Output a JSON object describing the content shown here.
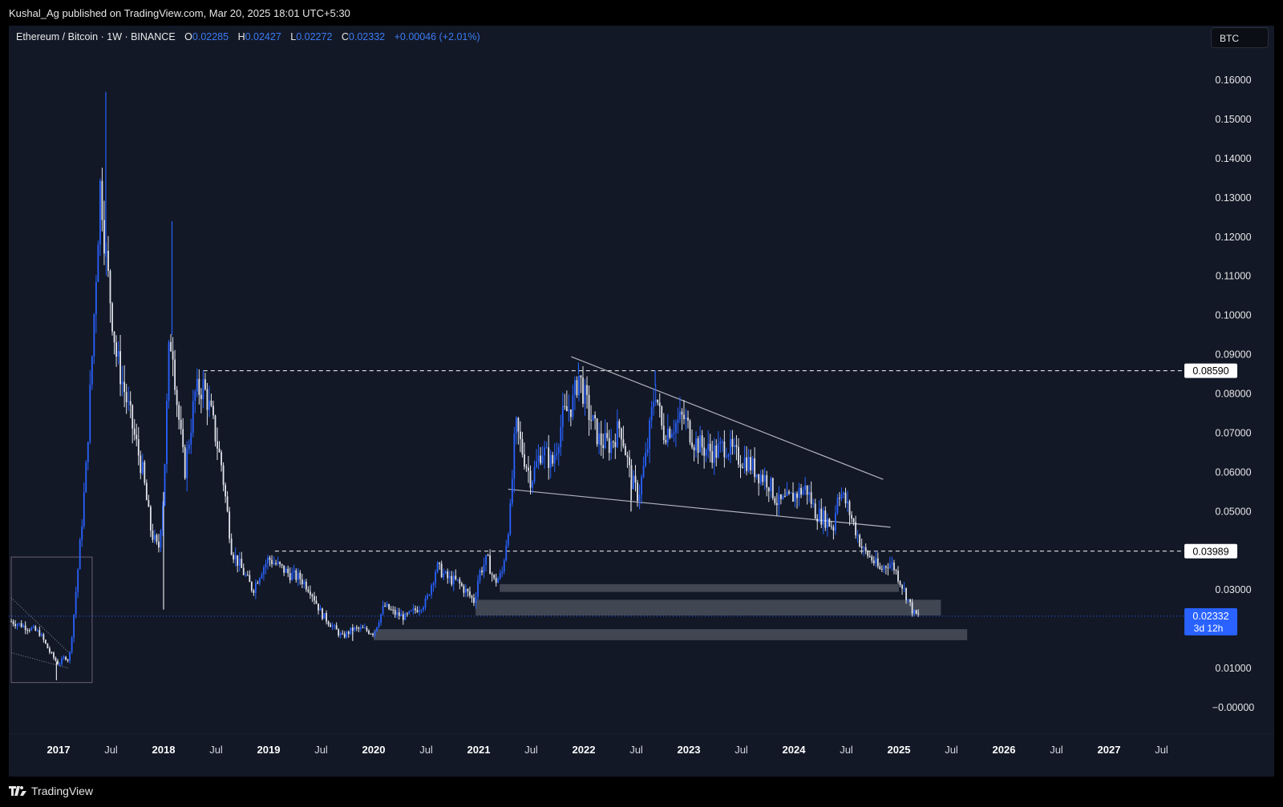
{
  "header": {
    "publisher_text": "Kushal_Ag published on TradingView.com, Mar 20, 2025 18:01 UTC+5:30"
  },
  "legend": {
    "symbol": "Ethereum / Bitcoin · 1W · BINANCE",
    "open_label": "O",
    "open": "0.02285",
    "high_label": "H",
    "high": "0.02427",
    "low_label": "L",
    "low": "0.02272",
    "close_label": "C",
    "close": "0.02332",
    "change": "+0.00046 (+2.01%)"
  },
  "currency_button": "BTC",
  "footer": {
    "brand": "TradingView"
  },
  "colors": {
    "background": "#121826",
    "up": "#2962ff",
    "down": "#e0e3eb",
    "zone": "#4a4f5c",
    "accent": "#2962ff"
  },
  "chart_data": {
    "type": "candlestick",
    "ylim": [
      -0.005,
      0.17
    ],
    "y_ticks": [
      "0.16000",
      "0.15000",
      "0.14000",
      "0.13000",
      "0.12000",
      "0.11000",
      "0.10000",
      "0.09000",
      "0.08000",
      "0.07000",
      "0.06000",
      "0.05000",
      "0.03000",
      "0.01000",
      "−0.00000"
    ],
    "y_tick_values": [
      0.16,
      0.15,
      0.14,
      0.13,
      0.12,
      0.11,
      0.1,
      0.09,
      0.08,
      0.07,
      0.06,
      0.05,
      0.03,
      0.01,
      0.0
    ],
    "x_ticks": [
      {
        "label": "2017",
        "t": 2017.0,
        "bold": true
      },
      {
        "label": "Jul",
        "t": 2017.5,
        "bold": false
      },
      {
        "label": "2018",
        "t": 2018.0,
        "bold": true
      },
      {
        "label": "Jul",
        "t": 2018.5,
        "bold": false
      },
      {
        "label": "2019",
        "t": 2019.0,
        "bold": true
      },
      {
        "label": "Jul",
        "t": 2019.5,
        "bold": false
      },
      {
        "label": "2020",
        "t": 2020.0,
        "bold": true
      },
      {
        "label": "Jul",
        "t": 2020.5,
        "bold": false
      },
      {
        "label": "2021",
        "t": 2021.0,
        "bold": true
      },
      {
        "label": "Jul",
        "t": 2021.5,
        "bold": false
      },
      {
        "label": "2022",
        "t": 2022.0,
        "bold": true
      },
      {
        "label": "Jul",
        "t": 2022.5,
        "bold": false
      },
      {
        "label": "2023",
        "t": 2023.0,
        "bold": true
      },
      {
        "label": "Jul",
        "t": 2023.5,
        "bold": false
      },
      {
        "label": "2024",
        "t": 2024.0,
        "bold": true
      },
      {
        "label": "Jul",
        "t": 2024.5,
        "bold": false
      },
      {
        "label": "2025",
        "t": 2025.0,
        "bold": true
      },
      {
        "label": "Jul",
        "t": 2025.5,
        "bold": false
      },
      {
        "label": "2026",
        "t": 2026.0,
        "bold": true
      },
      {
        "label": "Jul",
        "t": 2026.5,
        "bold": false
      },
      {
        "label": "2027",
        "t": 2027.0,
        "bold": true
      },
      {
        "label": "Jul",
        "t": 2027.5,
        "bold": false
      }
    ],
    "price_path": [
      [
        2016.55,
        0.022
      ],
      [
        2016.65,
        0.021
      ],
      [
        2016.75,
        0.02
      ],
      [
        2016.82,
        0.019
      ],
      [
        2016.92,
        0.014
      ],
      [
        2017.0,
        0.011
      ],
      [
        2017.06,
        0.013
      ],
      [
        2017.1,
        0.012
      ],
      [
        2017.14,
        0.022
      ],
      [
        2017.2,
        0.04
      ],
      [
        2017.26,
        0.06
      ],
      [
        2017.32,
        0.09
      ],
      [
        2017.4,
        0.135
      ],
      [
        2017.45,
        0.115
      ],
      [
        2017.55,
        0.09
      ],
      [
        2017.7,
        0.072
      ],
      [
        2017.8,
        0.06
      ],
      [
        2017.88,
        0.045
      ],
      [
        2017.95,
        0.04
      ],
      [
        2018.0,
        0.055
      ],
      [
        2018.05,
        0.09
      ],
      [
        2018.08,
        0.095
      ],
      [
        2018.12,
        0.08
      ],
      [
        2018.2,
        0.06
      ],
      [
        2018.3,
        0.08
      ],
      [
        2018.38,
        0.082
      ],
      [
        2018.45,
        0.075
      ],
      [
        2018.55,
        0.062
      ],
      [
        2018.65,
        0.04
      ],
      [
        2018.75,
        0.035
      ],
      [
        2018.85,
        0.03
      ],
      [
        2018.93,
        0.035
      ],
      [
        2019.0,
        0.038
      ],
      [
        2019.1,
        0.036
      ],
      [
        2019.2,
        0.034
      ],
      [
        2019.3,
        0.033
      ],
      [
        2019.4,
        0.03
      ],
      [
        2019.5,
        0.024
      ],
      [
        2019.6,
        0.021
      ],
      [
        2019.7,
        0.018
      ],
      [
        2019.8,
        0.02
      ],
      [
        2019.9,
        0.02
      ],
      [
        2020.0,
        0.019
      ],
      [
        2020.1,
        0.026
      ],
      [
        2020.2,
        0.024
      ],
      [
        2020.3,
        0.023
      ],
      [
        2020.4,
        0.025
      ],
      [
        2020.5,
        0.027
      ],
      [
        2020.6,
        0.036
      ],
      [
        2020.7,
        0.033
      ],
      [
        2020.8,
        0.032
      ],
      [
        2020.9,
        0.029
      ],
      [
        2020.96,
        0.027
      ],
      [
        2021.0,
        0.034
      ],
      [
        2021.08,
        0.038
      ],
      [
        2021.15,
        0.032
      ],
      [
        2021.22,
        0.034
      ],
      [
        2021.3,
        0.05
      ],
      [
        2021.35,
        0.072
      ],
      [
        2021.42,
        0.065
      ],
      [
        2021.5,
        0.058
      ],
      [
        2021.6,
        0.066
      ],
      [
        2021.7,
        0.062
      ],
      [
        2021.8,
        0.074
      ],
      [
        2021.9,
        0.078
      ],
      [
        2021.95,
        0.085
      ],
      [
        2022.05,
        0.075
      ],
      [
        2022.15,
        0.068
      ],
      [
        2022.25,
        0.067
      ],
      [
        2022.35,
        0.072
      ],
      [
        2022.45,
        0.058
      ],
      [
        2022.52,
        0.054
      ],
      [
        2022.6,
        0.065
      ],
      [
        2022.68,
        0.082
      ],
      [
        2022.75,
        0.07
      ],
      [
        2022.85,
        0.072
      ],
      [
        2022.95,
        0.074
      ],
      [
        2023.05,
        0.068
      ],
      [
        2023.15,
        0.066
      ],
      [
        2023.25,
        0.065
      ],
      [
        2023.35,
        0.067
      ],
      [
        2023.45,
        0.064
      ],
      [
        2023.55,
        0.063
      ],
      [
        2023.65,
        0.06
      ],
      [
        2023.75,
        0.058
      ],
      [
        2023.85,
        0.052
      ],
      [
        2023.95,
        0.053
      ],
      [
        2024.05,
        0.055
      ],
      [
        2024.12,
        0.056
      ],
      [
        2024.2,
        0.05
      ],
      [
        2024.3,
        0.048
      ],
      [
        2024.38,
        0.046
      ],
      [
        2024.42,
        0.056
      ],
      [
        2024.5,
        0.052
      ],
      [
        2024.58,
        0.046
      ],
      [
        2024.66,
        0.04
      ],
      [
        2024.74,
        0.038
      ],
      [
        2024.82,
        0.035
      ],
      [
        2024.9,
        0.037
      ],
      [
        2024.95,
        0.036
      ],
      [
        2025.0,
        0.033
      ],
      [
        2025.08,
        0.028
      ],
      [
        2025.14,
        0.024
      ],
      [
        2025.2,
        0.0233
      ]
    ],
    "wicks": [
      [
        2017.45,
        0.157
      ],
      [
        2018.08,
        0.124
      ],
      [
        2021.95,
        0.088
      ],
      [
        2022.68,
        0.086
      ],
      [
        2016.98,
        0.007
      ],
      [
        2018.0,
        0.025
      ],
      [
        2019.8,
        0.017
      ],
      [
        2022.45,
        0.05
      ]
    ],
    "horizontal_levels": [
      {
        "label": "0.08590",
        "value": 0.0859,
        "from": 2018.38
      },
      {
        "label": "0.03989",
        "value": 0.03989,
        "from": 2019.06
      }
    ],
    "current_price": {
      "label": "0.02332",
      "countdown": "3d 12h",
      "value": 0.02332
    },
    "zones": [
      {
        "from": 2021.2,
        "to": 2025.0,
        "low": 0.0295,
        "high": 0.0315
      },
      {
        "from": 2020.97,
        "to": 2025.4,
        "low": 0.0235,
        "high": 0.0275
      },
      {
        "from": 2020.0,
        "to": 2025.65,
        "low": 0.0172,
        "high": 0.02
      }
    ],
    "trendlines": [
      {
        "t1": 2021.88,
        "v1": 0.0895,
        "t2": 2024.85,
        "v2": 0.0582
      },
      {
        "t1": 2021.28,
        "v1": 0.0557,
        "t2": 2024.92,
        "v2": 0.046
      }
    ],
    "box": {
      "from": 2016.55,
      "to": 2017.32,
      "low": 0.0064,
      "high": 0.0384
    }
  }
}
